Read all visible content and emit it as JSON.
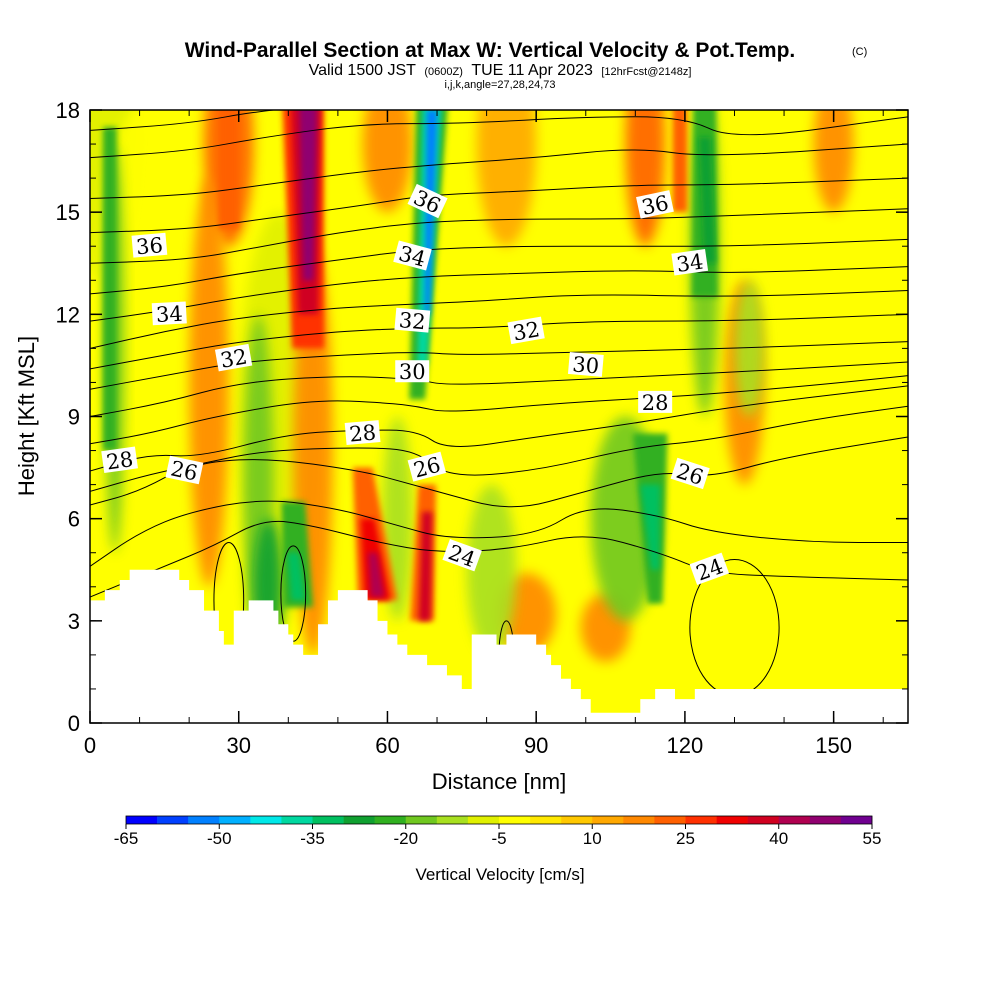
{
  "chart_data": {
    "type": "heatmap",
    "title": "Wind-Parallel Section at Max W: Vertical Velocity & Pot.Temp.",
    "title_mark": "(C)",
    "subtitle_parts": [
      "Valid 1500 JST",
      "(0600Z)",
      "TUE 11 Apr 2023",
      "[12hrFcst@2148z]"
    ],
    "subtitle2": "i,j,k,angle=27,28,24,73",
    "xlabel": "Distance [nm]",
    "ylabel": "Height [Kft MSL]",
    "xlim": [
      0,
      165
    ],
    "ylim": [
      0,
      18
    ],
    "xticks": [
      "0",
      "30",
      "60",
      "90",
      "120",
      "150"
    ],
    "yticks": [
      "0",
      "3",
      "6",
      "9",
      "12",
      "15",
      "18"
    ],
    "colorbar": {
      "label": "Vertical Velocity [cm/s]",
      "tick_labels": [
        "-65",
        "-50",
        "-35",
        "-20",
        "-5",
        "10",
        "25",
        "40",
        "55"
      ],
      "colors": [
        "#0000ff",
        "#0040ff",
        "#0080ff",
        "#00b0ff",
        "#00e8e8",
        "#00d8a0",
        "#00c060",
        "#10a030",
        "#30b020",
        "#70c820",
        "#a8e020",
        "#e0f000",
        "#ffff00",
        "#ffe800",
        "#ffc800",
        "#ffa800",
        "#ff8800",
        "#ff6000",
        "#ff3000",
        "#f00000",
        "#d00020",
        "#b00050",
        "#900070",
        "#700090"
      ]
    },
    "contours": {
      "variable": "Potential temperature",
      "levels": [
        24,
        26,
        28,
        30,
        32,
        34,
        36
      ],
      "labels": [
        {
          "text": "36",
          "x": 12,
          "y": 14.0,
          "angle": -5
        },
        {
          "text": "36",
          "x": 68,
          "y": 15.3,
          "angle": 25
        },
        {
          "text": "36",
          "x": 114,
          "y": 15.2,
          "angle": -12
        },
        {
          "text": "34",
          "x": 16,
          "y": 12.0,
          "angle": -3
        },
        {
          "text": "34",
          "x": 65,
          "y": 13.7,
          "angle": 15
        },
        {
          "text": "34",
          "x": 121,
          "y": 13.5,
          "angle": -8
        },
        {
          "text": "32",
          "x": 29,
          "y": 10.7,
          "angle": -10
        },
        {
          "text": "32",
          "x": 65,
          "y": 11.8,
          "angle": 5
        },
        {
          "text": "32",
          "x": 88,
          "y": 11.5,
          "angle": -10
        },
        {
          "text": "30",
          "x": 65,
          "y": 10.3,
          "angle": 0
        },
        {
          "text": "30",
          "x": 100,
          "y": 10.5,
          "angle": 5
        },
        {
          "text": "28",
          "x": 6,
          "y": 7.7,
          "angle": -8
        },
        {
          "text": "28",
          "x": 55,
          "y": 8.5,
          "angle": -5
        },
        {
          "text": "28",
          "x": 114,
          "y": 9.4,
          "angle": 0
        },
        {
          "text": "26",
          "x": 19,
          "y": 7.4,
          "angle": 12
        },
        {
          "text": "26",
          "x": 68,
          "y": 7.5,
          "angle": -15
        },
        {
          "text": "26",
          "x": 121,
          "y": 7.3,
          "angle": 18
        },
        {
          "text": "24",
          "x": 75,
          "y": 4.9,
          "angle": 20
        },
        {
          "text": "24",
          "x": 125,
          "y": 4.5,
          "angle": -20
        }
      ]
    },
    "features": [
      {
        "name": "updraft",
        "x": 44,
        "ytop": 18,
        "ybot": 12,
        "w": 45
      },
      {
        "name": "downdraft",
        "x": 69,
        "ytop": 18,
        "ybot": 10,
        "w": -60
      },
      {
        "name": "updraft",
        "x": 58,
        "ytop": 5,
        "ybot": 3,
        "w": 40
      },
      {
        "name": "updraft",
        "x": 68,
        "ytop": 6.5,
        "ybot": 3,
        "w": 35
      },
      {
        "name": "downdraft",
        "x": 42,
        "ytop": 5,
        "ybot": 3.5,
        "w": -35
      },
      {
        "name": "downdraft",
        "x": 114,
        "ytop": 8,
        "ybot": 4,
        "w": -30
      },
      {
        "name": "downdraft",
        "x": 124,
        "ytop": 17,
        "ybot": 12,
        "w": -25
      }
    ]
  }
}
